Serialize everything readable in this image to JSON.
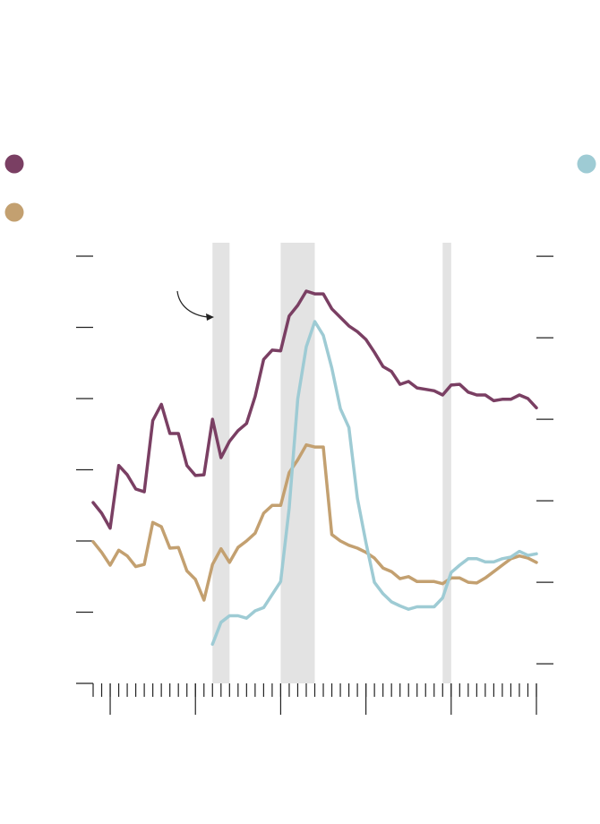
{
  "chart_data": {
    "type": "line",
    "x": [
      0,
      1,
      2,
      3,
      4,
      5,
      6,
      7,
      8,
      9,
      10,
      11,
      12,
      13,
      14,
      15,
      16,
      17,
      18,
      19,
      20,
      21,
      22,
      23,
      24,
      25,
      26,
      27,
      28,
      29,
      30,
      31,
      32,
      33,
      34,
      35,
      36,
      37,
      38,
      39,
      40,
      41,
      42,
      43,
      44,
      45,
      46,
      47,
      48,
      49,
      50,
      51,
      52
    ],
    "xlim": [
      0,
      52
    ],
    "xticks": [
      0,
      1,
      2,
      3,
      4,
      5,
      6,
      7,
      8,
      9,
      10,
      11,
      12,
      13,
      14,
      15,
      16,
      17,
      18,
      19,
      20,
      21,
      22,
      23,
      24,
      25,
      26,
      27,
      28,
      29,
      30,
      31,
      32,
      33,
      34,
      35,
      36,
      37,
      38,
      39,
      40,
      41,
      42,
      43,
      44,
      45,
      46,
      47,
      48,
      49,
      50,
      51,
      52
    ],
    "xticks_major": [
      2,
      12,
      22,
      32,
      42,
      52
    ],
    "ylim": [
      0,
      6
    ],
    "yticks": [
      0,
      1,
      2,
      3,
      4,
      5,
      6
    ],
    "y2lim": [
      -0.24,
      5
    ],
    "y2ticks": [
      0,
      1,
      2,
      3,
      4,
      5
    ],
    "shaded_ranges": [
      [
        14,
        16
      ],
      [
        22,
        26
      ],
      [
        41,
        42
      ]
    ],
    "shade_color": "#e3e3e3",
    "series": [
      {
        "color": "#7a3f63",
        "values": [
          2.54,
          2.39,
          2.18,
          3.06,
          2.93,
          2.73,
          2.69,
          3.69,
          3.92,
          3.51,
          3.51,
          3.06,
          2.92,
          2.93,
          3.71,
          3.17,
          3.4,
          3.55,
          3.65,
          4.03,
          4.55,
          4.68,
          4.67,
          5.16,
          5.31,
          5.51,
          5.47,
          5.47,
          5.26,
          5.14,
          5.02,
          4.94,
          4.83,
          4.65,
          4.45,
          4.38,
          4.2,
          4.24,
          4.15,
          4.13,
          4.11,
          4.05,
          4.19,
          4.2,
          4.09,
          4.05,
          4.05,
          3.97,
          3.99,
          3.99,
          4.05,
          4.0,
          3.87
        ]
      },
      {
        "color": "#c3a070",
        "values": [
          1.99,
          1.84,
          1.66,
          1.87,
          1.79,
          1.64,
          1.67,
          2.26,
          2.2,
          1.9,
          1.91,
          1.58,
          1.46,
          1.17,
          1.67,
          1.89,
          1.7,
          1.91,
          2.0,
          2.11,
          2.39,
          2.5,
          2.5,
          2.96,
          3.14,
          3.35,
          3.32,
          3.32,
          2.09,
          2.0,
          1.94,
          1.9,
          1.84,
          1.76,
          1.62,
          1.57,
          1.47,
          1.5,
          1.43,
          1.43,
          1.43,
          1.4,
          1.48,
          1.48,
          1.42,
          1.41,
          1.48,
          1.57,
          1.66,
          1.75,
          1.79,
          1.76,
          1.7
        ]
      },
      {
        "color": "#9ecbd4",
        "axis": "y2",
        "values": [
          null,
          null,
          null,
          null,
          null,
          null,
          null,
          null,
          null,
          null,
          null,
          null,
          null,
          null,
          0.24,
          0.51,
          0.59,
          0.59,
          0.56,
          0.65,
          0.69,
          0.85,
          1.01,
          1.91,
          3.25,
          3.89,
          4.2,
          4.03,
          3.63,
          3.13,
          2.9,
          2.03,
          1.49,
          1.0,
          0.86,
          0.76,
          0.71,
          0.67,
          0.7,
          0.7,
          0.7,
          0.81,
          1.12,
          1.21,
          1.29,
          1.29,
          1.25,
          1.25,
          1.29,
          1.31,
          1.38,
          1.33,
          1.35
        ]
      }
    ]
  }
}
